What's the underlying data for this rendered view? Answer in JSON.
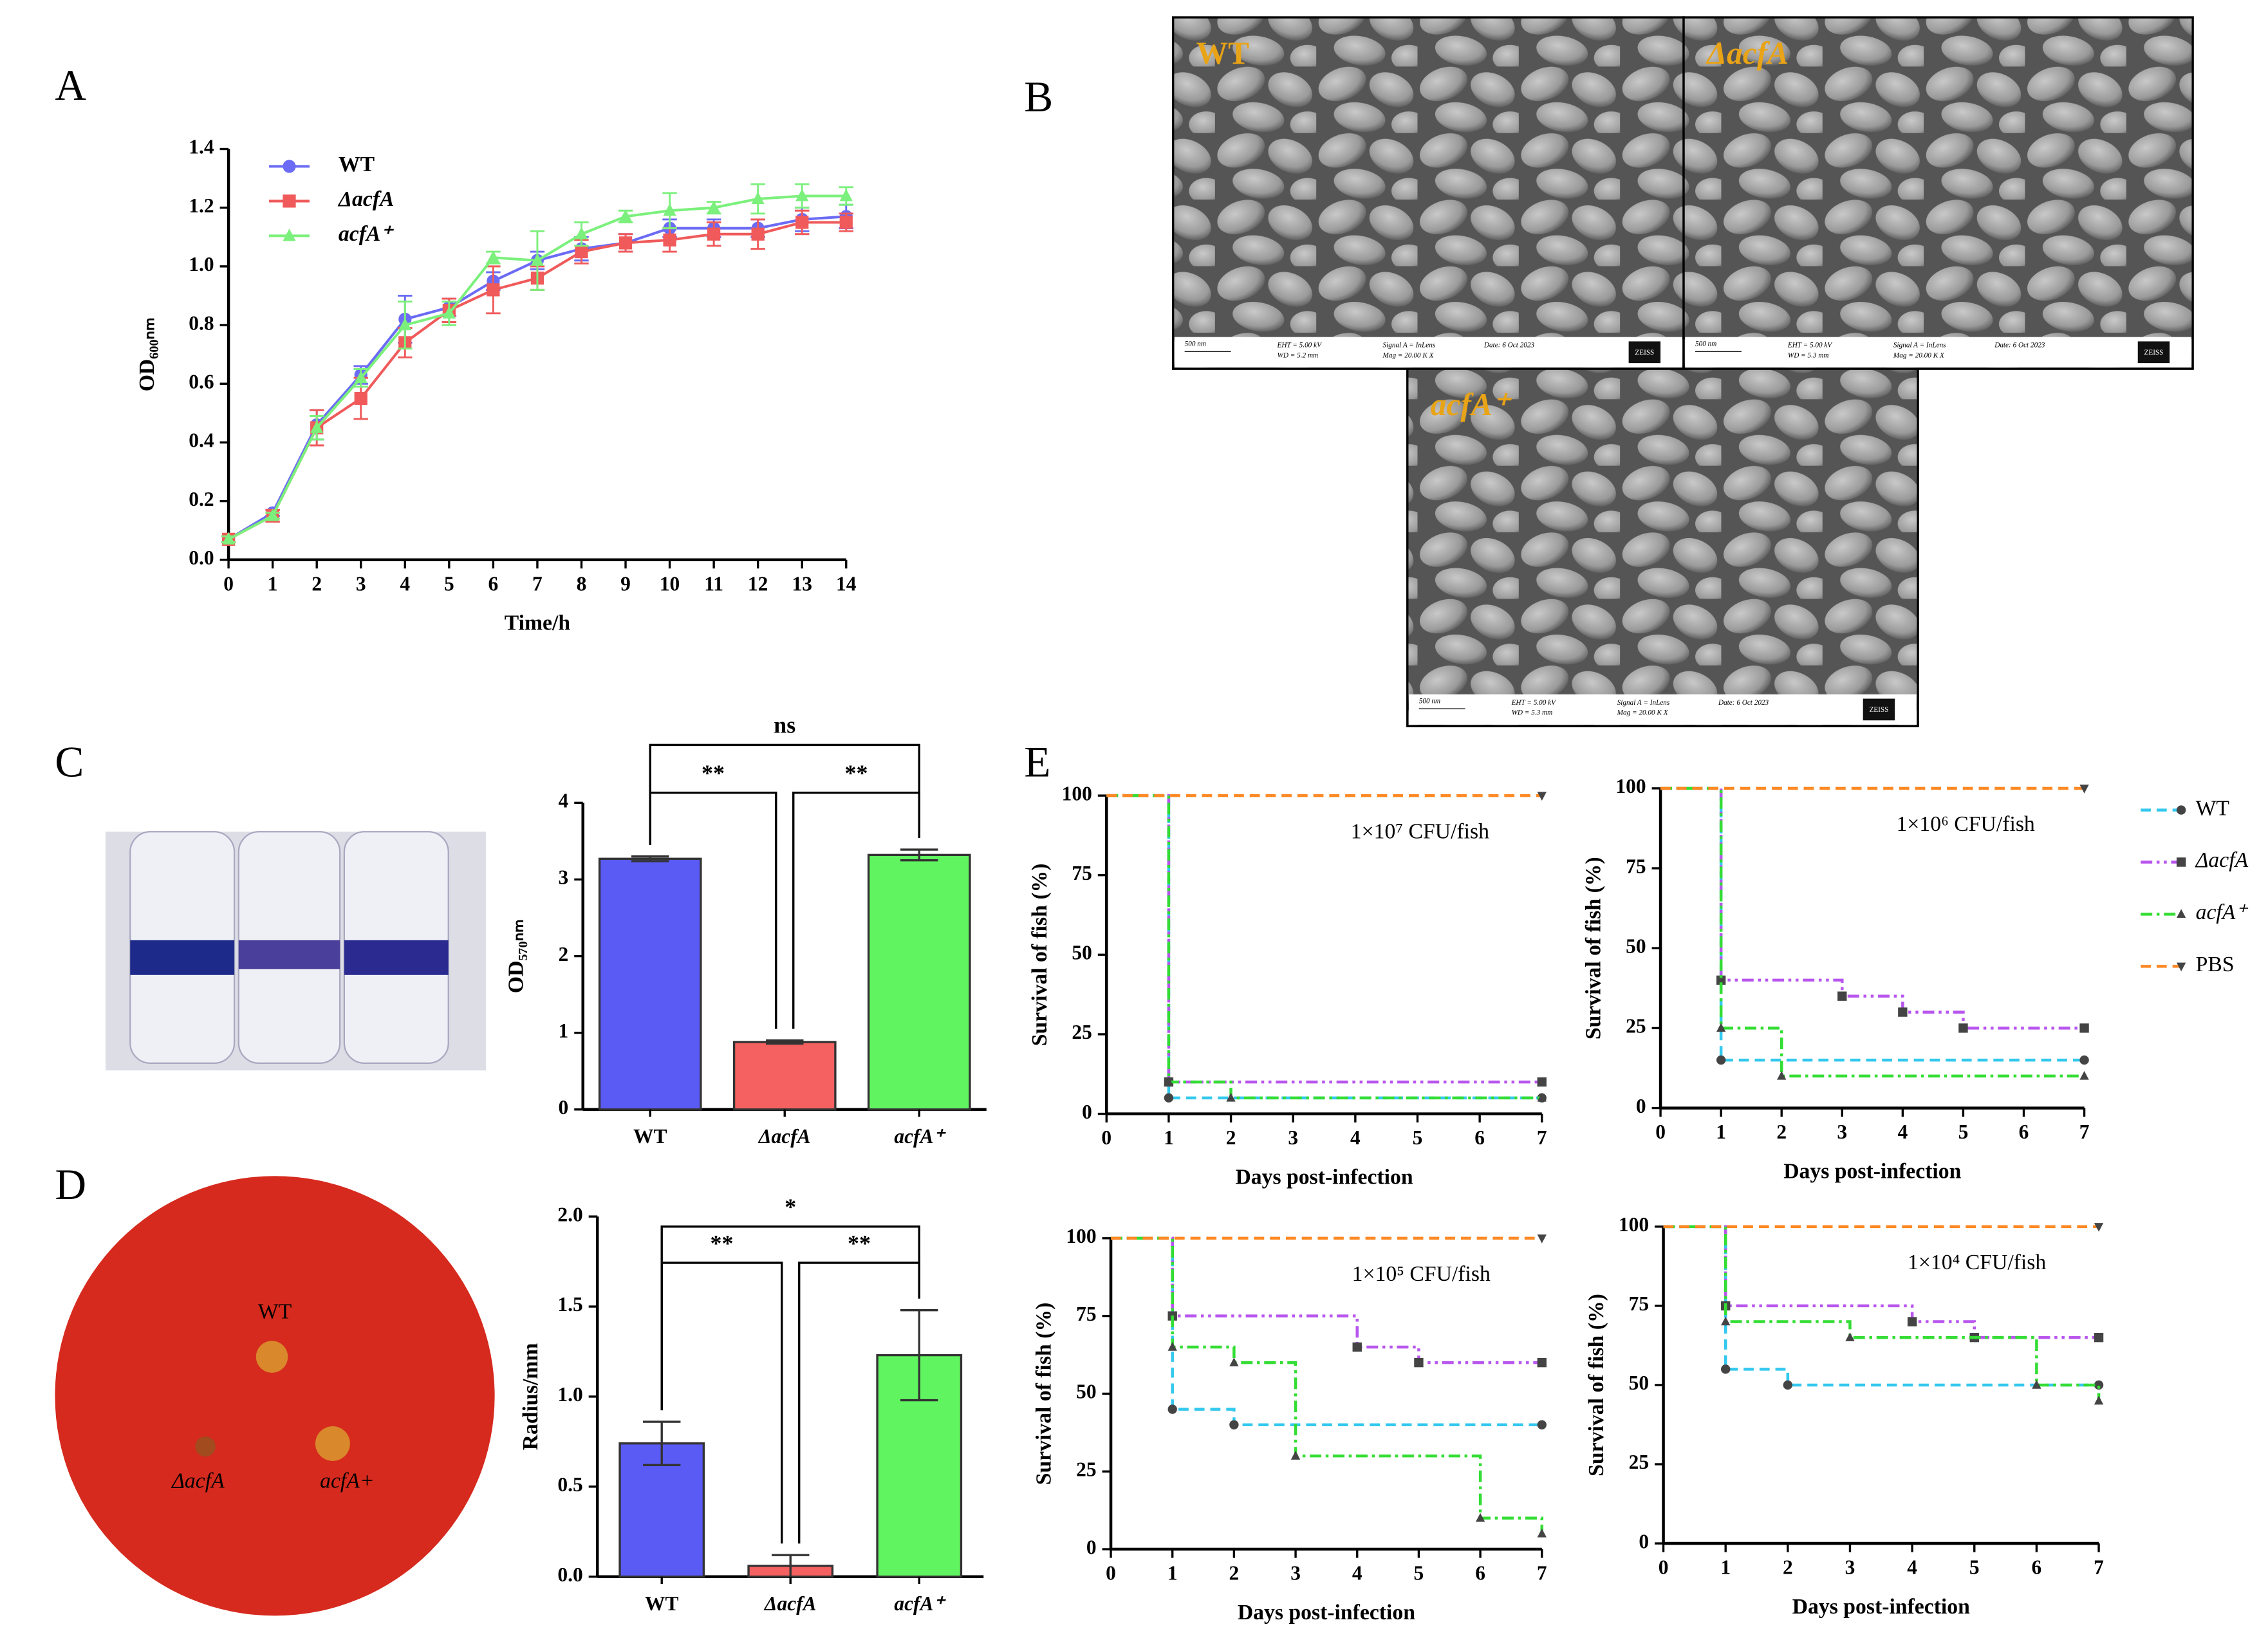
{
  "panel_labels": [
    "A",
    "B",
    "C",
    "D",
    "E"
  ],
  "sem_images": [
    {
      "label": "WT",
      "scale_bar": "500 nm",
      "eht": "EHT = 5.00 kV",
      "wd": "WD = 5.2 mm",
      "signal": "Signal A = InLens",
      "mag": "Mag = 20.00 K X",
      "date": "Date: 6 Oct 2023",
      "brand": "ZEISS"
    },
    {
      "label": "ΔacfA",
      "scale_bar": "500 nm",
      "eht": "EHT = 5.00 kV",
      "wd": "WD = 5.3 mm",
      "signal": "Signal A = InLens",
      "mag": "Mag = 20.00 K X",
      "date": "Date: 6 Oct 2023",
      "brand": "ZEISS"
    },
    {
      "label": "acfA⁺",
      "scale_bar": "500 nm",
      "eht": "EHT = 5.00 kV",
      "wd": "WD = 5.3 mm",
      "signal": "Signal A = InLens",
      "mag": "Mag = 20.00 K X",
      "date": "Date: 6 Oct 2023",
      "brand": "ZEISS"
    }
  ],
  "plate_labels": [
    "WT",
    "ΔacfA",
    "acfA+"
  ],
  "chart_data": [
    {
      "type": "line",
      "xlabel": "Time/h",
      "ylabel": "OD₆₀₀ₙₘ",
      "x": [
        0,
        1,
        2,
        3,
        4,
        5,
        6,
        7,
        8,
        9,
        10,
        11,
        12,
        13,
        14
      ],
      "xlim": [
        0,
        14
      ],
      "xticks": [
        0,
        1,
        2,
        3,
        4,
        5,
        6,
        7,
        8,
        9,
        10,
        11,
        12,
        13,
        14
      ],
      "ylim": [
        0,
        1.4
      ],
      "yticks": [
        {
          "value": 0,
          "label": "0.0"
        },
        {
          "value": 0.2,
          "label": "0.2"
        },
        {
          "value": 0.4,
          "label": "0.4"
        },
        {
          "value": 0.6,
          "label": "0.6"
        },
        {
          "value": 0.8,
          "label": "0.8"
        },
        {
          "value": 1.0,
          "label": "1.0"
        },
        {
          "value": 1.2,
          "label": "1.2"
        },
        {
          "value": 1.4,
          "label": "1.4"
        }
      ],
      "legend": "upper left",
      "series": [
        {
          "name": "WT",
          "color": "#6b6bf5",
          "marker": "circle",
          "values": [
            0.07,
            0.16,
            0.46,
            0.63,
            0.82,
            0.86,
            0.95,
            1.02,
            1.06,
            1.08,
            1.13,
            1.13,
            1.13,
            1.16,
            1.17
          ],
          "errors": [
            0.01,
            0.01,
            0.05,
            0.03,
            0.08,
            0.03,
            0.03,
            0.03,
            0.04,
            0.03,
            0.03,
            0.03,
            0.03,
            0.04,
            0.04
          ]
        },
        {
          "name": "ΔacfA",
          "color": "#f05a5a",
          "marker": "square",
          "values": [
            0.07,
            0.15,
            0.45,
            0.55,
            0.74,
            0.85,
            0.92,
            0.96,
            1.05,
            1.08,
            1.09,
            1.11,
            1.11,
            1.15,
            1.15
          ],
          "errors": [
            0.01,
            0.02,
            0.06,
            0.07,
            0.05,
            0.04,
            0.08,
            0.04,
            0.04,
            0.03,
            0.04,
            0.04,
            0.05,
            0.04,
            0.03
          ]
        },
        {
          "name": "acfA⁺",
          "color": "#7cf07c",
          "marker": "triangle-up",
          "values": [
            0.07,
            0.15,
            0.45,
            0.62,
            0.8,
            0.84,
            1.03,
            1.02,
            1.11,
            1.17,
            1.19,
            1.2,
            1.23,
            1.24,
            1.24
          ],
          "errors": [
            0.01,
            0.01,
            0.04,
            0.03,
            0.08,
            0.04,
            0.02,
            0.1,
            0.04,
            0.02,
            0.06,
            0.02,
            0.05,
            0.04,
            0.03
          ]
        }
      ]
    },
    {
      "type": "bar",
      "ylabel": "OD₅₇₀ₙₘ",
      "categories": [
        "WT",
        "ΔacfA",
        "acfA⁺"
      ],
      "values": [
        3.27,
        0.88,
        3.32
      ],
      "errors": [
        0.03,
        0.02,
        0.07
      ],
      "colors": [
        "#5a5af5",
        "#f56060",
        "#60f560"
      ],
      "ylim": [
        0,
        4
      ],
      "yticks": [
        0,
        1,
        2,
        3,
        4
      ],
      "annotations": [
        {
          "text": "**",
          "from": 0,
          "to": 1
        },
        {
          "text": "**",
          "from": 1,
          "to": 2
        },
        {
          "text": "ns",
          "from": 0,
          "to": 2
        }
      ]
    },
    {
      "type": "bar",
      "ylabel": "Radius/mm",
      "categories": [
        "WT",
        "ΔacfA",
        "acfA⁺"
      ],
      "values": [
        0.74,
        0.06,
        1.23
      ],
      "errors": [
        0.12,
        0.06,
        0.25
      ],
      "colors": [
        "#5a5af5",
        "#f56060",
        "#60f560"
      ],
      "ylim": [
        0,
        2.0
      ],
      "yticks": [
        {
          "value": 0,
          "label": "0.0"
        },
        {
          "value": 0.5,
          "label": "0.5"
        },
        {
          "value": 1.0,
          "label": "1.0"
        },
        {
          "value": 1.5,
          "label": "1.5"
        },
        {
          "value": 2.0,
          "label": "2.0"
        }
      ],
      "annotations": [
        {
          "text": "**",
          "from": 0,
          "to": 1
        },
        {
          "text": "**",
          "from": 1,
          "to": 2
        },
        {
          "text": "*",
          "from": 0,
          "to": 2
        }
      ]
    },
    {
      "type": "step",
      "xlabel": "Days post-infection",
      "ylabel": "Survival of fish (%)",
      "x": [
        0,
        1,
        2,
        3,
        4,
        5,
        6,
        7
      ],
      "xlim": [
        0,
        7
      ],
      "xticks": [
        0,
        1,
        2,
        3,
        4,
        5,
        6,
        7
      ],
      "ylim": [
        0,
        100
      ],
      "yticks": [
        0,
        25,
        50,
        75,
        100
      ],
      "legend": "right",
      "series": [
        {
          "name": "WT",
          "color": "#33c8ee",
          "linestyle": "dashed",
          "marker": "circle"
        },
        {
          "name": "ΔacfA",
          "color": "#b855ee",
          "linestyle": "dashdotdot",
          "marker": "square"
        },
        {
          "name": "acfA⁺",
          "color": "#33dd33",
          "linestyle": "dashdot",
          "marker": "triangle-up"
        },
        {
          "name": "PBS",
          "color": "#ff8822",
          "linestyle": "dashed",
          "marker": "triangle-down"
        }
      ],
      "subplots": [
        {
          "title": "1×10⁷ CFU/fish",
          "values": [
            [
              100,
              5,
              5,
              5,
              5,
              5,
              5,
              5
            ],
            [
              100,
              10,
              10,
              10,
              10,
              10,
              10,
              10
            ],
            [
              100,
              10,
              5,
              5,
              5,
              5,
              5,
              5
            ],
            [
              100,
              100,
              100,
              100,
              100,
              100,
              100,
              100
            ]
          ]
        },
        {
          "title": "1×10⁶ CFU/fish",
          "values": [
            [
              100,
              15,
              15,
              15,
              15,
              15,
              15,
              15
            ],
            [
              100,
              40,
              40,
              35,
              30,
              25,
              25,
              25
            ],
            [
              100,
              25,
              10,
              10,
              10,
              10,
              10,
              10
            ],
            [
              100,
              100,
              100,
              100,
              100,
              100,
              100,
              100
            ]
          ]
        },
        {
          "title": "1×10⁵ CFU/fish",
          "values": [
            [
              100,
              45,
              40,
              40,
              40,
              40,
              40,
              40
            ],
            [
              100,
              75,
              75,
              75,
              65,
              60,
              60,
              60
            ],
            [
              100,
              65,
              60,
              30,
              30,
              30,
              10,
              5
            ],
            [
              100,
              100,
              100,
              100,
              100,
              100,
              100,
              100
            ]
          ]
        },
        {
          "title": "1×10⁴ CFU/fish",
          "values": [
            [
              100,
              55,
              50,
              50,
              50,
              50,
              50,
              50
            ],
            [
              100,
              75,
              75,
              75,
              70,
              65,
              65,
              65
            ],
            [
              100,
              70,
              70,
              65,
              65,
              65,
              50,
              45
            ],
            [
              100,
              100,
              100,
              100,
              100,
              100,
              100,
              100
            ]
          ]
        }
      ]
    }
  ]
}
